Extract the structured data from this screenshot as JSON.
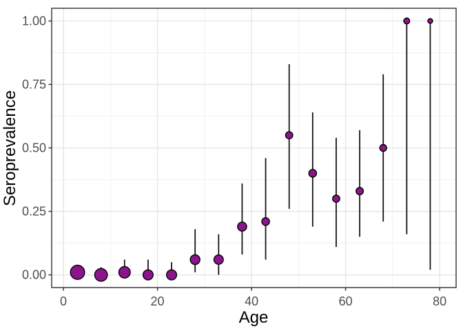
{
  "chart_data": {
    "type": "scatter",
    "title": "",
    "xlabel": "Age",
    "ylabel": "Seroprevalence",
    "xlim": [
      -2.5,
      83.5
    ],
    "ylim": [
      -0.05,
      1.05
    ],
    "grid": true,
    "legend": "none",
    "x_ticks": {
      "values": [
        0,
        20,
        40,
        60,
        80
      ],
      "labels": [
        "0",
        "20",
        "40",
        "60",
        "80"
      ]
    },
    "x_minor": [
      10,
      30,
      50,
      70
    ],
    "y_ticks": {
      "values": [
        0.0,
        0.25,
        0.5,
        0.75,
        1.0
      ],
      "labels": [
        "0.00",
        "0.25",
        "0.50",
        "0.75",
        "1.00"
      ]
    },
    "y_minor": [
      0.125,
      0.375,
      0.625,
      0.875
    ],
    "points": [
      {
        "age": 3,
        "value": 0.01,
        "lower": 0.0,
        "upper": 0.04,
        "r": 10.3
      },
      {
        "age": 8,
        "value": 0.0,
        "lower": 0.0,
        "upper": 0.03,
        "r": 9.2
      },
      {
        "age": 13,
        "value": 0.01,
        "lower": 0.0,
        "upper": 0.06,
        "r": 8.3
      },
      {
        "age": 18,
        "value": 0.0,
        "lower": 0.0,
        "upper": 0.06,
        "r": 7.3
      },
      {
        "age": 23,
        "value": 0.0,
        "lower": 0.0,
        "upper": 0.05,
        "r": 7.3
      },
      {
        "age": 28,
        "value": 0.06,
        "lower": 0.01,
        "upper": 0.18,
        "r": 7.0
      },
      {
        "age": 33,
        "value": 0.06,
        "lower": 0.0,
        "upper": 0.16,
        "r": 6.8
      },
      {
        "age": 38,
        "value": 0.19,
        "lower": 0.08,
        "upper": 0.36,
        "r": 6.6
      },
      {
        "age": 43,
        "value": 0.21,
        "lower": 0.06,
        "upper": 0.46,
        "r": 5.6
      },
      {
        "age": 48,
        "value": 0.55,
        "lower": 0.26,
        "upper": 0.83,
        "r": 5.2
      },
      {
        "age": 53,
        "value": 0.4,
        "lower": 0.19,
        "upper": 0.64,
        "r": 5.6
      },
      {
        "age": 58,
        "value": 0.3,
        "lower": 0.11,
        "upper": 0.54,
        "r": 5.2
      },
      {
        "age": 63,
        "value": 0.33,
        "lower": 0.15,
        "upper": 0.57,
        "r": 5.3
      },
      {
        "age": 68,
        "value": 0.5,
        "lower": 0.21,
        "upper": 0.79,
        "r": 5.0
      },
      {
        "age": 73,
        "value": 1.0,
        "lower": 0.16,
        "upper": 1.0,
        "r": 4.3
      },
      {
        "age": 78,
        "value": 1.0,
        "lower": 0.02,
        "upper": 1.0,
        "r": 3.5
      }
    ],
    "colors": {
      "background": "#FFFFFF",
      "point_fill": "#8B158B",
      "point_stroke": "#000000",
      "errorbar": "#141414",
      "grid_major": "#E4E4E4",
      "grid_minor": "#EFEFEF",
      "panel_border": "#2E2E2E",
      "tick_mark": "#333333",
      "tick_label": "#4D4D4D",
      "axis_title": "#000000"
    }
  }
}
